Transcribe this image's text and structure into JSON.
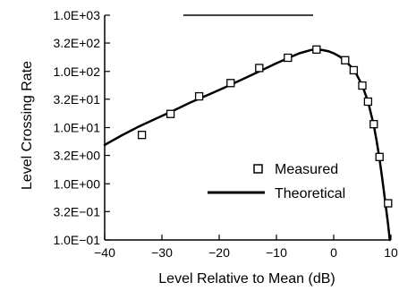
{
  "chart_data": {
    "type": "scatter",
    "title": "",
    "xlabel": "Level Relative to Mean (dB)",
    "ylabel": "Level Crossing Rate",
    "xlim": [
      -40,
      10
    ],
    "ylim": [
      0.1,
      1000
    ],
    "yscale": "log",
    "xticks": [
      -40,
      -30,
      -20,
      -10,
      0,
      10
    ],
    "xtick_labels": [
      "−40",
      "−30",
      "−20",
      "−10",
      "0",
      "10"
    ],
    "yticks": [
      1000,
      320,
      100,
      32,
      10,
      3.2,
      1,
      0.32,
      0.1
    ],
    "ytick_labels": [
      "1.0E+03",
      "3.2E+02",
      "1.0E+02",
      "3.2E+01",
      "1.0E+01",
      "3.2E+00",
      "1.0E+00",
      "3.2E−01",
      "1.0E−01"
    ],
    "grid": false,
    "legend_position": "lower-right",
    "series": [
      {
        "name": "Measured",
        "kind": "marker",
        "marker": "open-square",
        "x": [
          -33.5,
          -28.5,
          -23.5,
          -18,
          -13,
          -8,
          -3,
          2,
          3.5,
          5,
          6,
          7,
          8,
          9.5
        ],
        "y": [
          7.4,
          17.5,
          36,
          62,
          115,
          175,
          245,
          158,
          105,
          56,
          29,
          11.5,
          3,
          0.45
        ]
      },
      {
        "name": "Theoretical",
        "kind": "line",
        "x": [
          -40,
          -37,
          -34,
          -31,
          -28,
          -25,
          -22,
          -19,
          -16,
          -13,
          -10,
          -8,
          -6,
          -4,
          -3,
          -2,
          -1,
          0,
          1,
          2,
          3,
          4,
          5,
          6,
          7,
          7.5,
          8,
          8.5,
          9,
          9.5,
          9.8
        ],
        "y": [
          4.9,
          7.3,
          10.5,
          14.5,
          20,
          28,
          38,
          52,
          72,
          100,
          140,
          172,
          210,
          240,
          245,
          240,
          230,
          210,
          185,
          155,
          122,
          88,
          56,
          29,
          11,
          5.8,
          2.8,
          1.2,
          0.48,
          0.19,
          0.1
        ]
      }
    ]
  },
  "colors": {
    "line": "#000000",
    "marker_edge": "#000000",
    "background": "#ffffff"
  }
}
